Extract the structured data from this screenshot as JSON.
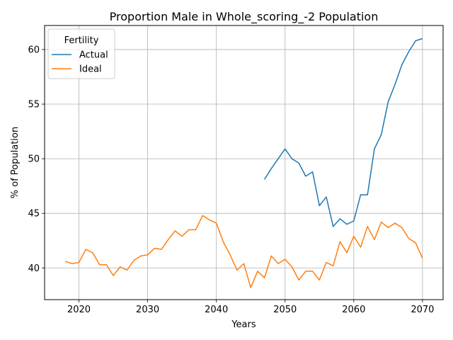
{
  "chart_data": {
    "type": "line",
    "title": "Proportion Male in Whole_scoring_-2 Population",
    "xlabel": "Years",
    "ylabel": "% of Population",
    "xlim": [
      2015,
      2073
    ],
    "ylim": [
      37.1,
      62.2
    ],
    "xticks": [
      2020,
      2030,
      2040,
      2050,
      2060,
      2070
    ],
    "yticks": [
      40,
      45,
      50,
      55,
      60
    ],
    "grid": true,
    "legend": {
      "title": "Fertility",
      "placement": "top-left"
    },
    "series": [
      {
        "name": "Actual",
        "color": "#1f77b4",
        "x": [
          2047,
          2048,
          2049,
          2050,
          2051,
          2052,
          2053,
          2054,
          2055,
          2056,
          2057,
          2058,
          2059,
          2060,
          2061,
          2062,
          2063,
          2064,
          2065,
          2066,
          2067,
          2068,
          2069,
          2070
        ],
        "y": [
          48.1,
          49.1,
          50.0,
          50.9,
          50.0,
          49.6,
          48.4,
          48.8,
          45.7,
          46.5,
          43.8,
          44.5,
          44.0,
          44.3,
          46.7,
          46.7,
          50.9,
          52.2,
          55.2,
          56.8,
          58.6,
          59.8,
          60.8,
          61.0
        ]
      },
      {
        "name": "Ideal",
        "color": "#ff7f0e",
        "x": [
          2018,
          2019,
          2020,
          2021,
          2022,
          2023,
          2024,
          2025,
          2026,
          2027,
          2028,
          2029,
          2030,
          2031,
          2032,
          2033,
          2034,
          2035,
          2036,
          2037,
          2038,
          2039,
          2040,
          2041,
          2042,
          2043,
          2044,
          2045,
          2046,
          2047,
          2048,
          2049,
          2050,
          2051,
          2052,
          2053,
          2054,
          2055,
          2056,
          2057,
          2058,
          2059,
          2060,
          2061,
          2062,
          2063,
          2064,
          2065,
          2066,
          2067,
          2068,
          2069,
          2070
        ],
        "y": [
          40.6,
          40.4,
          40.5,
          41.7,
          41.4,
          40.3,
          40.3,
          39.3,
          40.1,
          39.8,
          40.7,
          41.1,
          41.2,
          41.8,
          41.7,
          42.6,
          43.4,
          42.9,
          43.5,
          43.5,
          44.8,
          44.4,
          44.1,
          42.4,
          41.2,
          39.8,
          40.4,
          38.2,
          39.7,
          39.1,
          41.1,
          40.4,
          40.8,
          40.1,
          38.9,
          39.7,
          39.7,
          38.9,
          40.5,
          40.2,
          42.4,
          41.4,
          42.9,
          41.9,
          43.8,
          42.6,
          44.2,
          43.7,
          44.1,
          43.7,
          42.7,
          42.3,
          40.9
        ]
      }
    ]
  }
}
